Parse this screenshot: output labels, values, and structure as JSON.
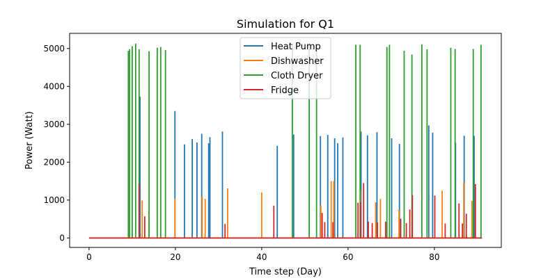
{
  "chart_data": {
    "type": "line",
    "title": "Simulation for Q1",
    "xlabel": "Time step (Day)",
    "ylabel": "Power (Watt)",
    "xlim": [
      -4.5,
      95.5
    ],
    "ylim": [
      -250,
      5400
    ],
    "xticks": [
      0,
      20,
      40,
      60,
      80
    ],
    "yticks": [
      0,
      1000,
      2000,
      3000,
      4000,
      5000
    ],
    "grid": false,
    "legend_position": "top-center",
    "x_end": 91,
    "series": [
      {
        "name": "Heat Pump",
        "color": "#1f77b4",
        "spikes": [
          [
            11.8,
            3730
          ],
          [
            19.9,
            3350
          ],
          [
            22.1,
            2470
          ],
          [
            23.9,
            2610
          ],
          [
            25.0,
            2520
          ],
          [
            26.1,
            2750
          ],
          [
            27.7,
            2500
          ],
          [
            28.0,
            2660
          ],
          [
            30.9,
            2810
          ],
          [
            43.6,
            2430
          ],
          [
            47.4,
            2730
          ],
          [
            53.6,
            2690
          ],
          [
            55.3,
            2720
          ],
          [
            56.9,
            2630
          ],
          [
            57.6,
            2500
          ],
          [
            58.8,
            2650
          ],
          [
            63.0,
            2810
          ],
          [
            64.5,
            2710
          ],
          [
            66.7,
            2790
          ],
          [
            70.1,
            2630
          ],
          [
            71.9,
            2480
          ],
          [
            78.7,
            2970
          ],
          [
            79.6,
            2780
          ],
          [
            84.9,
            2510
          ],
          [
            86.9,
            2700
          ],
          [
            89.2,
            2700
          ]
        ]
      },
      {
        "name": "Dishwasher",
        "color": "#ff7f0e",
        "spikes": [
          [
            12.3,
            990
          ],
          [
            13.9,
            700
          ],
          [
            19.9,
            1040
          ],
          [
            26.2,
            1100
          ],
          [
            26.9,
            1030
          ],
          [
            32.1,
            1310
          ],
          [
            40.0,
            1200
          ],
          [
            53.7,
            860
          ],
          [
            56.1,
            1500
          ],
          [
            56.7,
            1500
          ],
          [
            62.9,
            1240
          ],
          [
            66.4,
            940
          ],
          [
            67.5,
            1030
          ],
          [
            71.8,
            740
          ],
          [
            81.8,
            1250
          ],
          [
            86.8,
            1470
          ],
          [
            88.7,
            980
          ]
        ]
      },
      {
        "name": "Cloth Dryer",
        "color": "#2ca02c",
        "spikes": [
          [
            9.1,
            4940
          ],
          [
            9.4,
            4980
          ],
          [
            10.0,
            5060
          ],
          [
            10.8,
            5130
          ],
          [
            11.6,
            4980
          ],
          [
            13.9,
            4930
          ],
          [
            15.8,
            5020
          ],
          [
            16.6,
            5040
          ],
          [
            17.7,
            4960
          ],
          [
            47.1,
            5130
          ],
          [
            51.0,
            5140
          ],
          [
            52.7,
            5090
          ],
          [
            61.8,
            5100
          ],
          [
            62.8,
            5100
          ],
          [
            69.0,
            5040
          ],
          [
            69.6,
            5100
          ],
          [
            73.0,
            4940
          ],
          [
            74.8,
            4840
          ],
          [
            77.1,
            5110
          ],
          [
            78.3,
            4980
          ],
          [
            83.8,
            5020
          ],
          [
            84.8,
            4990
          ],
          [
            89.0,
            4990
          ],
          [
            90.8,
            5100
          ]
        ]
      },
      {
        "name": "Fridge",
        "color": "#d62728",
        "spikes": [
          [
            11.6,
            1430
          ],
          [
            12.9,
            570
          ],
          [
            31.5,
            370
          ],
          [
            42.8,
            850
          ],
          [
            54.0,
            660
          ],
          [
            54.6,
            420
          ],
          [
            56.5,
            420
          ],
          [
            62.3,
            930
          ],
          [
            62.9,
            950
          ],
          [
            63.6,
            1450
          ],
          [
            64.7,
            430
          ],
          [
            65.6,
            390
          ],
          [
            66.8,
            410
          ],
          [
            68.7,
            430
          ],
          [
            72.2,
            510
          ],
          [
            73.5,
            390
          ],
          [
            74.3,
            750
          ],
          [
            74.9,
            1130
          ],
          [
            80.1,
            1120
          ],
          [
            82.5,
            380
          ],
          [
            85.7,
            910
          ],
          [
            86.5,
            380
          ],
          [
            87.4,
            640
          ],
          [
            89.5,
            1420
          ]
        ]
      }
    ]
  }
}
